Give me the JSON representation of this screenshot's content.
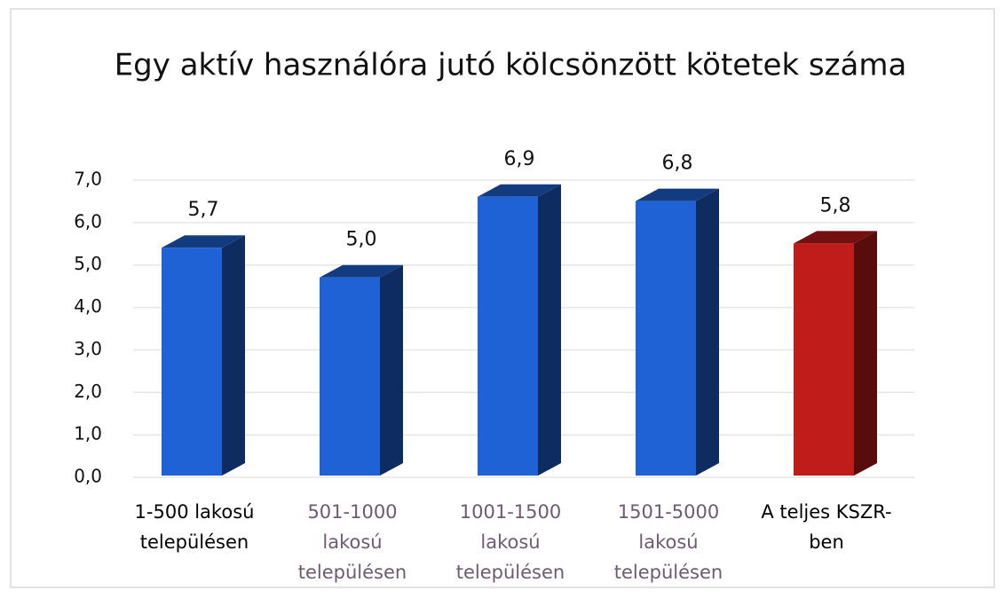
{
  "chart_data": {
    "type": "bar3d",
    "title": "Egy aktív használóra jutó kölcsönzött kötetek száma",
    "categories": [
      "1-500 lakosú településen",
      "501-1000 lakosú településen",
      "1001-1500 lakosú településen",
      "1501-5000 lakosú településen",
      "A teljes KSZR-ben"
    ],
    "values": [
      5.7,
      5.0,
      6.9,
      6.8,
      5.8
    ],
    "value_labels": [
      "5,7",
      "5,0",
      "6,9",
      "6,8",
      "5,8"
    ],
    "colors": [
      "#1f62d6",
      "#1f62d6",
      "#1f62d6",
      "#1f62d6",
      "#c01d1a"
    ],
    "label_colors": [
      "#000000",
      "#6e5a72",
      "#6e5a72",
      "#6e5a72",
      "#000000"
    ],
    "ylim": [
      0,
      7
    ],
    "yticks": [
      {
        "value": 0,
        "label": "0,0"
      },
      {
        "value": 1,
        "label": "1,0"
      },
      {
        "value": 2,
        "label": "2,0"
      },
      {
        "value": 3,
        "label": "3,0"
      },
      {
        "value": 4,
        "label": "4,0"
      },
      {
        "value": 5,
        "label": "5,0"
      },
      {
        "value": 6,
        "label": "6,0"
      },
      {
        "value": 7,
        "label": "7,0"
      }
    ],
    "grid": true
  }
}
